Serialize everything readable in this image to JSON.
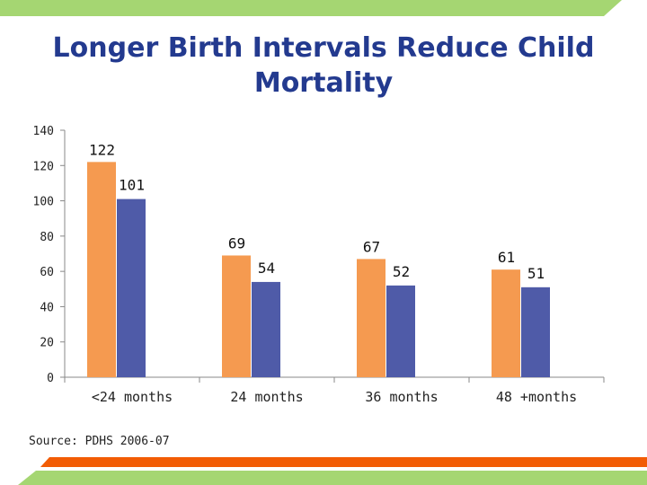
{
  "slide": {
    "title": "Longer Birth Intervals Reduce Child Mortality",
    "source": "Source: PDHS 2006-07"
  },
  "colors": {
    "title": "#233a8f",
    "series_orange": "#f59a50",
    "series_blue": "#4f5ba8",
    "band_green": "#a5d672",
    "band_orange": "#f25c05",
    "axis": "#888888"
  },
  "chart_data": {
    "type": "bar",
    "categories": [
      "<24 months",
      "24 months",
      "36 months",
      "48 +months"
    ],
    "series": [
      {
        "values": [
          122,
          69,
          67,
          61
        ],
        "color": "#f59a50"
      },
      {
        "values": [
          101,
          54,
          52,
          51
        ],
        "color": "#4f5ba8"
      }
    ],
    "ylim": [
      0,
      140
    ],
    "yticks": [
      0,
      20,
      40,
      60,
      80,
      100,
      120,
      140
    ],
    "grid": false,
    "legend": "none"
  }
}
